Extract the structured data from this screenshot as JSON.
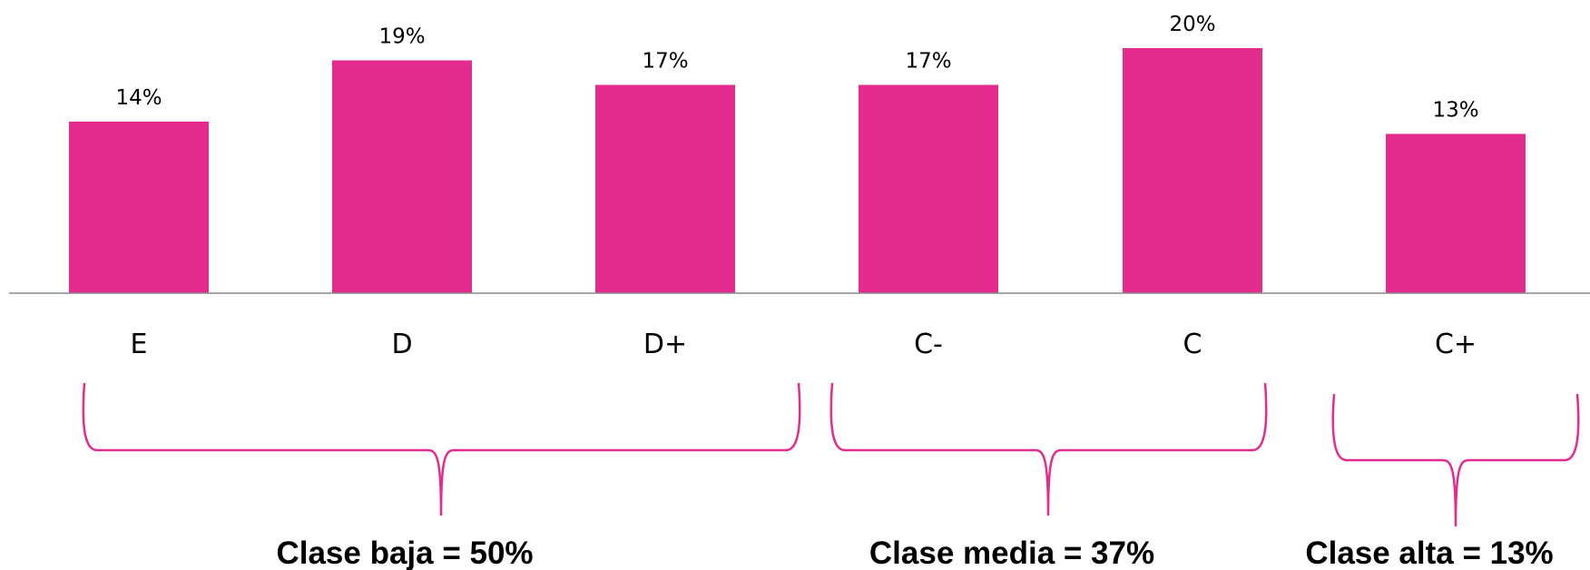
{
  "chart_data": {
    "type": "bar",
    "categories": [
      "E",
      "D",
      "D+",
      "C-",
      "C",
      "C+"
    ],
    "values": [
      14,
      19,
      17,
      17,
      20,
      13
    ],
    "value_labels": [
      "14%",
      "19%",
      "17%",
      "17%",
      "20%",
      "13%"
    ],
    "bar_color": "#E32C8E",
    "ylim": [
      0,
      20
    ],
    "grid": false,
    "legend": "none",
    "groups": [
      {
        "label": "Clase baja = 50%",
        "categories": [
          "E",
          "D",
          "D+"
        ]
      },
      {
        "label": "Clase media = 37%",
        "categories": [
          "C-",
          "C"
        ]
      },
      {
        "label": "Clase alta = 13%",
        "categories": [
          "C+"
        ]
      }
    ]
  }
}
